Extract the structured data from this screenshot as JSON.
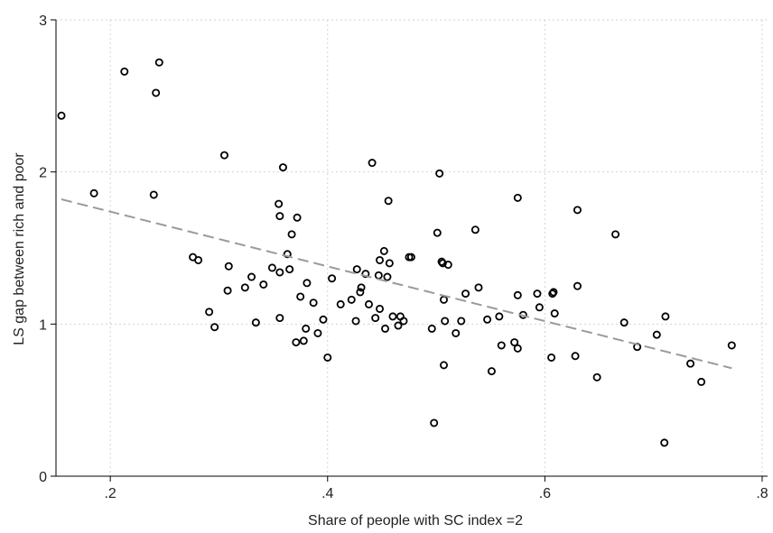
{
  "chart_data": {
    "type": "scatter",
    "xlabel": "Share of people with SC index =2",
    "ylabel": "LS gap between rich and poor",
    "xlim": [
      0.15,
      0.805
    ],
    "ylim": [
      0,
      3
    ],
    "x_ticks": [
      {
        "value": 0.2,
        "label": ".2"
      },
      {
        "value": 0.4,
        "label": ".4"
      },
      {
        "value": 0.6,
        "label": ".6"
      },
      {
        "value": 0.8,
        "label": ".8"
      }
    ],
    "y_ticks": [
      {
        "value": 0,
        "label": "0"
      },
      {
        "value": 1,
        "label": "1"
      },
      {
        "value": 2,
        "label": "2"
      },
      {
        "value": 3,
        "label": "3"
      }
    ],
    "grid": true,
    "fit_line": {
      "x": [
        0.155,
        0.772
      ],
      "y": [
        1.82,
        0.71
      ]
    },
    "colors": {
      "points": "#000000",
      "fit_line": "#9a9a9a",
      "grid": "#d2d2d2"
    },
    "points": [
      {
        "x": 0.155,
        "y": 2.37
      },
      {
        "x": 0.185,
        "y": 1.86
      },
      {
        "x": 0.213,
        "y": 2.66
      },
      {
        "x": 0.24,
        "y": 1.85
      },
      {
        "x": 0.242,
        "y": 2.52
      },
      {
        "x": 0.245,
        "y": 2.72
      },
      {
        "x": 0.276,
        "y": 1.44
      },
      {
        "x": 0.281,
        "y": 1.42
      },
      {
        "x": 0.291,
        "y": 1.08
      },
      {
        "x": 0.296,
        "y": 0.98
      },
      {
        "x": 0.305,
        "y": 2.11
      },
      {
        "x": 0.308,
        "y": 1.22
      },
      {
        "x": 0.309,
        "y": 1.38
      },
      {
        "x": 0.324,
        "y": 1.24
      },
      {
        "x": 0.33,
        "y": 1.31
      },
      {
        "x": 0.334,
        "y": 1.01
      },
      {
        "x": 0.341,
        "y": 1.26
      },
      {
        "x": 0.349,
        "y": 1.37
      },
      {
        "x": 0.355,
        "y": 1.79
      },
      {
        "x": 0.356,
        "y": 1.71
      },
      {
        "x": 0.356,
        "y": 1.34
      },
      {
        "x": 0.356,
        "y": 1.04
      },
      {
        "x": 0.359,
        "y": 2.03
      },
      {
        "x": 0.363,
        "y": 1.46
      },
      {
        "x": 0.365,
        "y": 1.36
      },
      {
        "x": 0.367,
        "y": 1.59
      },
      {
        "x": 0.371,
        "y": 0.88
      },
      {
        "x": 0.372,
        "y": 1.7
      },
      {
        "x": 0.375,
        "y": 1.18
      },
      {
        "x": 0.378,
        "y": 0.89
      },
      {
        "x": 0.38,
        "y": 0.97
      },
      {
        "x": 0.381,
        "y": 1.27
      },
      {
        "x": 0.387,
        "y": 1.14
      },
      {
        "x": 0.391,
        "y": 0.94
      },
      {
        "x": 0.396,
        "y": 1.03
      },
      {
        "x": 0.4,
        "y": 0.78
      },
      {
        "x": 0.404,
        "y": 1.3
      },
      {
        "x": 0.412,
        "y": 1.13
      },
      {
        "x": 0.422,
        "y": 1.16
      },
      {
        "x": 0.426,
        "y": 1.02
      },
      {
        "x": 0.427,
        "y": 1.36
      },
      {
        "x": 0.43,
        "y": 1.21
      },
      {
        "x": 0.431,
        "y": 1.24
      },
      {
        "x": 0.435,
        "y": 1.33
      },
      {
        "x": 0.438,
        "y": 1.13
      },
      {
        "x": 0.441,
        "y": 2.06
      },
      {
        "x": 0.444,
        "y": 1.04
      },
      {
        "x": 0.447,
        "y": 1.32
      },
      {
        "x": 0.448,
        "y": 1.42
      },
      {
        "x": 0.448,
        "y": 1.1
      },
      {
        "x": 0.452,
        "y": 1.48
      },
      {
        "x": 0.453,
        "y": 0.97
      },
      {
        "x": 0.455,
        "y": 1.31
      },
      {
        "x": 0.456,
        "y": 1.81
      },
      {
        "x": 0.457,
        "y": 1.4
      },
      {
        "x": 0.46,
        "y": 1.05
      },
      {
        "x": 0.465,
        "y": 0.99
      },
      {
        "x": 0.467,
        "y": 1.05
      },
      {
        "x": 0.47,
        "y": 1.02
      },
      {
        "x": 0.475,
        "y": 1.44
      },
      {
        "x": 0.477,
        "y": 1.44
      },
      {
        "x": 0.496,
        "y": 0.97
      },
      {
        "x": 0.498,
        "y": 0.35
      },
      {
        "x": 0.501,
        "y": 1.6
      },
      {
        "x": 0.503,
        "y": 1.99
      },
      {
        "x": 0.505,
        "y": 1.41
      },
      {
        "x": 0.506,
        "y": 1.4
      },
      {
        "x": 0.507,
        "y": 0.73
      },
      {
        "x": 0.507,
        "y": 1.16
      },
      {
        "x": 0.508,
        "y": 1.02
      },
      {
        "x": 0.511,
        "y": 1.39
      },
      {
        "x": 0.518,
        "y": 0.94
      },
      {
        "x": 0.523,
        "y": 1.02
      },
      {
        "x": 0.527,
        "y": 1.2
      },
      {
        "x": 0.536,
        "y": 1.62
      },
      {
        "x": 0.539,
        "y": 1.24
      },
      {
        "x": 0.547,
        "y": 1.03
      },
      {
        "x": 0.551,
        "y": 0.69
      },
      {
        "x": 0.558,
        "y": 1.05
      },
      {
        "x": 0.56,
        "y": 0.86
      },
      {
        "x": 0.572,
        "y": 0.88
      },
      {
        "x": 0.575,
        "y": 1.83
      },
      {
        "x": 0.575,
        "y": 1.19
      },
      {
        "x": 0.575,
        "y": 0.84
      },
      {
        "x": 0.58,
        "y": 1.06
      },
      {
        "x": 0.593,
        "y": 1.2
      },
      {
        "x": 0.595,
        "y": 1.11
      },
      {
        "x": 0.606,
        "y": 0.78
      },
      {
        "x": 0.607,
        "y": 1.2
      },
      {
        "x": 0.608,
        "y": 1.21
      },
      {
        "x": 0.609,
        "y": 1.07
      },
      {
        "x": 0.628,
        "y": 0.79
      },
      {
        "x": 0.63,
        "y": 1.75
      },
      {
        "x": 0.63,
        "y": 1.25
      },
      {
        "x": 0.648,
        "y": 0.65
      },
      {
        "x": 0.665,
        "y": 1.59
      },
      {
        "x": 0.673,
        "y": 1.01
      },
      {
        "x": 0.685,
        "y": 0.85
      },
      {
        "x": 0.703,
        "y": 0.93
      },
      {
        "x": 0.71,
        "y": 0.22
      },
      {
        "x": 0.711,
        "y": 1.05
      },
      {
        "x": 0.734,
        "y": 0.74
      },
      {
        "x": 0.744,
        "y": 0.62
      },
      {
        "x": 0.772,
        "y": 0.86
      }
    ]
  }
}
